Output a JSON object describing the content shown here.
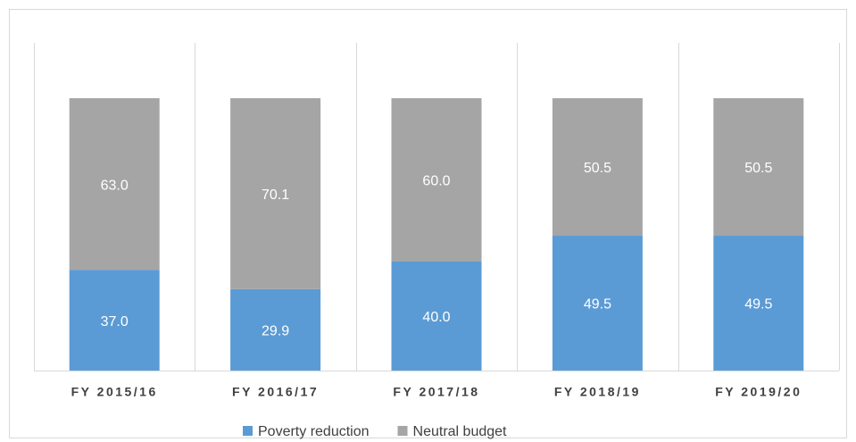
{
  "chart_data": {
    "type": "stacked_bar",
    "categories": [
      "FY 2015/16",
      "FY 2016/17",
      "FY 2017/18",
      "FY 2018/19",
      "FY 2019/20"
    ],
    "series": [
      {
        "name": "Poverty reduction",
        "color": "#5b9bd5",
        "values": [
          37.0,
          29.9,
          40.0,
          49.5,
          49.5
        ],
        "value_labels": [
          "37.0",
          "29.9",
          "40.0",
          "49.5",
          "49.5"
        ]
      },
      {
        "name": "Neutral budget",
        "color": "#a5a5a5",
        "values": [
          63.0,
          70.1,
          60.0,
          50.5,
          50.5
        ],
        "value_labels": [
          "63.0",
          "70.1",
          "60.0",
          "50.5",
          "50.5"
        ]
      }
    ],
    "legend": "bottom"
  }
}
